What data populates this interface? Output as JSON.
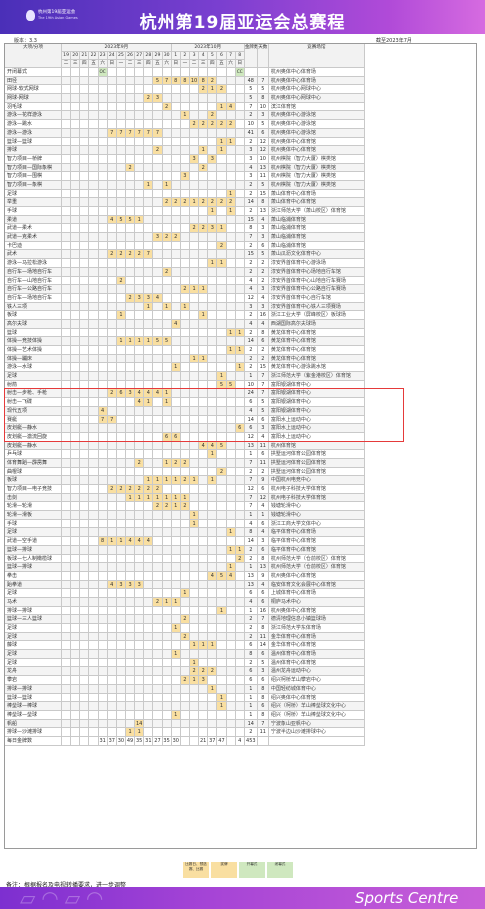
{
  "header": {
    "logo_cn": "杭州第19届亚运会",
    "logo_en": "The 19th Asian Games",
    "title": "杭州第19届亚运会总赛程",
    "version": "版本：3.3",
    "asof": "截至2023年7月"
  },
  "table": {
    "header_left": "大项/分项",
    "months": [
      "2023年9月",
      "2023年10月"
    ],
    "days": [
      "19",
      "20",
      "21",
      "22",
      "23",
      "24",
      "25",
      "26",
      "27",
      "28",
      "29",
      "30",
      "1",
      "2",
      "3",
      "4",
      "5",
      "6",
      "7",
      "8"
    ],
    "weekdays": [
      "二",
      "三",
      "四",
      "五",
      "六",
      "日",
      "一",
      "二",
      "三",
      "四",
      "五",
      "六",
      "日",
      "一",
      "二",
      "三",
      "四",
      "五",
      "六",
      "日"
    ],
    "col_medals": "金牌数",
    "col_days": "天数",
    "col_venue": "竞赛场馆",
    "rows": [
      {
        "name": "开闭幕式",
        "cells": {
          "4": "OC",
          "19": "CC"
        },
        "medals": "",
        "days": "",
        "venue": "杭州奥体中心体育场"
      },
      {
        "name": "田径",
        "cells": {
          "10": "5",
          "11": "7",
          "12": "8",
          "13": "8",
          "14": "10",
          "15": "8",
          "16": "2"
        },
        "medals": "48",
        "days": "7",
        "venue": "杭州奥体中心体育场"
      },
      {
        "name": "网球-软式网球",
        "cells": {
          "15": "2",
          "16": "1",
          "17": "2"
        },
        "medals": "5",
        "days": "5",
        "venue": "杭州奥体中心网球中心"
      },
      {
        "name": "网球-网球",
        "cells": {
          "9": "2",
          "10": "3"
        },
        "medals": "5",
        "days": "8",
        "venue": "杭州奥体中心网球中心"
      },
      {
        "name": "羽毛球",
        "cells": {
          "11": "2",
          "17": "1",
          "18": "4"
        },
        "medals": "7",
        "days": "10",
        "venue": "滨江体育馆"
      },
      {
        "name": "游泳—花样游泳",
        "cells": {
          "13": "1",
          "16": "2"
        },
        "medals": "2",
        "days": "3",
        "venue": "杭州奥体中心游泳馆"
      },
      {
        "name": "游泳—跳水",
        "cells": {
          "14": "2",
          "15": "2",
          "16": "2",
          "17": "2",
          "18": "2"
        },
        "medals": "10",
        "days": "5",
        "venue": "杭州奥体中心游泳馆"
      },
      {
        "name": "游泳—游泳",
        "cells": {
          "5": "7",
          "6": "7",
          "7": "7",
          "8": "7",
          "9": "7",
          "10": "7"
        },
        "medals": "41",
        "days": "6",
        "venue": "杭州奥体中心游泳馆"
      },
      {
        "name": "篮球—篮球",
        "cells": {
          "17": "1",
          "18": "1"
        },
        "medals": "2",
        "days": "12",
        "venue": "杭州奥体中心体育馆"
      },
      {
        "name": "排球",
        "cells": {
          "10": "2",
          "15": "1",
          "17": "1"
        },
        "medals": "3",
        "days": "12",
        "venue": "杭州奥体中心体育馆"
      },
      {
        "name": "智力项目—桥牌",
        "cells": {
          "14": "3",
          "16": "3"
        },
        "medals": "3",
        "days": "10",
        "venue": "杭州棋院（智力大厦）棋类馆"
      },
      {
        "name": "智力项目—国际象棋",
        "cells": {
          "7": "2",
          "15": "2"
        },
        "medals": "4",
        "days": "13",
        "venue": "杭州棋院（智力大厦）棋类馆"
      },
      {
        "name": "智力项目—围棋",
        "cells": {
          "13": "3"
        },
        "medals": "3",
        "days": "11",
        "venue": "杭州棋院（智力大厦）棋类馆"
      },
      {
        "name": "智力项目—象棋",
        "cells": {
          "9": "1",
          "11": "1"
        },
        "medals": "2",
        "days": "5",
        "venue": "杭州棋院（智力大厦）棋类馆"
      },
      {
        "name": "足球",
        "cells": {
          "18": "1"
        },
        "medals": "2",
        "days": "15",
        "venue": "萧山体育中心体育场"
      },
      {
        "name": "举重",
        "cells": {
          "11": "2",
          "12": "2",
          "13": "2",
          "14": "1",
          "15": "2",
          "16": "2",
          "17": "2",
          "18": "2"
        },
        "medals": "14",
        "days": "8",
        "venue": "萧山体育中心体育馆"
      },
      {
        "name": "手球",
        "cells": {
          "16": "1",
          "18": "1"
        },
        "medals": "2",
        "days": "13",
        "venue": "浙江师范大学（萧山校区）体育馆"
      },
      {
        "name": "柔道",
        "cells": {
          "5": "4",
          "6": "5",
          "7": "5",
          "8": "1"
        },
        "medals": "15",
        "days": "4",
        "venue": "萧山临浦体育馆"
      },
      {
        "name": "武道—柔术",
        "cells": {
          "14": "2",
          "15": "2",
          "16": "3",
          "17": "1"
        },
        "medals": "8",
        "days": "3",
        "venue": "萧山临浦体育馆"
      },
      {
        "name": "武道—克柔术",
        "cells": {
          "10": "3",
          "11": "2",
          "12": "2"
        },
        "medals": "7",
        "days": "3",
        "venue": "萧山临浦体育馆"
      },
      {
        "name": "卡巴迪",
        "cells": {
          "17": "2"
        },
        "medals": "2",
        "days": "6",
        "venue": "萧山临浦体育馆"
      },
      {
        "name": "武术",
        "cells": {
          "5": "2",
          "6": "2",
          "7": "2",
          "8": "2",
          "9": "7"
        },
        "medals": "15",
        "days": "5",
        "venue": "萧山瓜沥文化体育中心"
      },
      {
        "name": "游泳—马拉松游泳",
        "cells": {
          "16": "1",
          "17": "1"
        },
        "medals": "2",
        "days": "2",
        "venue": "淳安界首体育中心游泳场"
      },
      {
        "name": "自行车—场地自行车",
        "cells": {
          "11": "2"
        },
        "medals": "2",
        "days": "2",
        "venue": "淳安界首体育中心场地自行车馆"
      },
      {
        "name": "自行车—山地自行车",
        "cells": {
          "6": "2"
        },
        "medals": "4",
        "days": "2",
        "venue": "淳安界首体育中心山地自行车赛场"
      },
      {
        "name": "自行车—公路自行车",
        "cells": {
          "13": "2",
          "14": "1",
          "15": "1"
        },
        "medals": "4",
        "days": "3",
        "venue": "淳安界首体育中心公路自行车赛场"
      },
      {
        "name": "自行车—场地自行车",
        "cells": {
          "7": "2",
          "8": "3",
          "9": "3",
          "10": "4"
        },
        "medals": "12",
        "days": "4",
        "venue": "淳安界首体育中心自行车馆"
      },
      {
        "name": "铁人三项",
        "cells": {
          "9": "1",
          "11": "1",
          "13": "1"
        },
        "medals": "3",
        "days": "3",
        "venue": "淳安界首体育中心铁人三项赛场"
      },
      {
        "name": "板球",
        "cells": {
          "6": "1",
          "15": "1"
        },
        "medals": "2",
        "days": "16",
        "venue": "浙江工业大学（屏峰校区）板球场"
      },
      {
        "name": "高尔夫球",
        "cells": {
          "12": "4"
        },
        "medals": "4",
        "days": "4",
        "venue": "西湖国际高尔夫球场"
      },
      {
        "name": "篮球",
        "cells": {
          "18": "1",
          "19": "1"
        },
        "medals": "2",
        "days": "8",
        "venue": "黄龙体育中心体育馆"
      },
      {
        "name": "体操—竞技体操",
        "cells": {
          "6": "1",
          "7": "1",
          "8": "1",
          "9": "1",
          "10": "5",
          "11": "5"
        },
        "medals": "14",
        "days": "6",
        "venue": "黄龙体育中心体育馆"
      },
      {
        "name": "体操—艺术体操",
        "cells": {
          "18": "1",
          "19": "1"
        },
        "medals": "2",
        "days": "2",
        "venue": "黄龙体育中心体育馆"
      },
      {
        "name": "体操—蹦床",
        "cells": {
          "14": "1",
          "15": "1"
        },
        "medals": "2",
        "days": "2",
        "venue": "黄龙体育中心体育馆"
      },
      {
        "name": "游泳—水球",
        "cells": {
          "12": "1",
          "19": "1"
        },
        "medals": "2",
        "days": "15",
        "venue": "黄龙体育中心游泳跳水馆"
      },
      {
        "name": "足球",
        "cells": {
          "17": "1"
        },
        "medals": "1",
        "days": "7",
        "venue": "浙江师范大学（紫金港校区）体育馆"
      },
      {
        "name": "射箭",
        "cells": {
          "17": "5",
          "18": "5"
        },
        "medals": "10",
        "days": "7",
        "venue": "富阳银湖体育中心"
      },
      {
        "name": "射击—步枪、手枪",
        "cells": {
          "5": "2",
          "6": "6",
          "7": "3",
          "8": "4",
          "9": "4",
          "10": "4",
          "11": "1"
        },
        "medals": "24",
        "days": "7",
        "venue": "富阳银湖体育中心"
      },
      {
        "name": "射击—飞碟",
        "cells": {
          "8": "4",
          "9": "1",
          "11": "1"
        },
        "medals": "6",
        "days": "5",
        "venue": "富阳银湖体育中心"
      },
      {
        "name": "现代五项",
        "cells": {
          "4": "4"
        },
        "medals": "4",
        "days": "5",
        "venue": "富阳银湖体育中心"
      },
      {
        "name": "赛艇",
        "cells": {
          "4": "7",
          "5": "7"
        },
        "medals": "14",
        "days": "6",
        "venue": "富阳水上运动中心"
      },
      {
        "name": "皮划艇—静水",
        "cells": {
          "19": "6"
        },
        "medals": "6",
        "days": "3",
        "venue": "富阳水上运动中心"
      },
      {
        "name": "皮划艇—激流回旋",
        "cells": {
          "11": "6",
          "12": "6"
        },
        "medals": "12",
        "days": "4",
        "venue": "富阳水上运动中心"
      },
      {
        "name": "皮划艇—静水",
        "cells": {
          "15": "4",
          "16": "4",
          "17": "5"
        },
        "medals": "13",
        "days": "11",
        "venue": "杭州体育馆"
      },
      {
        "name": "乒乓球",
        "cells": {
          "16": "1"
        },
        "medals": "1",
        "days": "6",
        "venue": "拱墅运河体育公园体育馆"
      },
      {
        "name": "体育舞蹈—霹雳舞",
        "cells": {
          "8": "2",
          "11": "1",
          "12": "2",
          "13": "2"
        },
        "medals": "7",
        "days": "11",
        "venue": "拱墅运河体育公园体育馆"
      },
      {
        "name": "曲棍球",
        "cells": {
          "17": "2"
        },
        "medals": "2",
        "days": "2",
        "venue": "拱墅运河体育公园体育馆"
      },
      {
        "name": "板球",
        "cells": {
          "9": "1",
          "10": "1",
          "11": "1",
          "12": "1",
          "13": "2",
          "14": "1",
          "16": "1"
        },
        "medals": "7",
        "days": "9",
        "venue": "中国杭州电竞中心"
      },
      {
        "name": "智力项目—电子竞技",
        "cells": {
          "5": "2",
          "6": "2",
          "7": "2",
          "8": "2",
          "9": "2",
          "10": "2"
        },
        "medals": "12",
        "days": "6",
        "venue": "杭州电子科技大学体育馆"
      },
      {
        "name": "击剑",
        "cells": {
          "7": "1",
          "8": "1",
          "9": "1",
          "10": "1",
          "11": "1",
          "12": "1",
          "13": "1"
        },
        "medals": "7",
        "days": "12",
        "venue": "杭州电子科技大学体育馆"
      },
      {
        "name": "轮滑—轮滑",
        "cells": {
          "10": "2",
          "11": "2",
          "12": "1",
          "13": "2"
        },
        "medals": "7",
        "days": "4",
        "venue": "钱塘轮滑中心"
      },
      {
        "name": "轮滑—滑板",
        "cells": {
          "14": "1"
        },
        "medals": "1",
        "days": "1",
        "venue": "钱塘轮滑中心"
      },
      {
        "name": "手球",
        "cells": {
          "14": "1"
        },
        "medals": "4",
        "days": "6",
        "venue": "浙江工商大学文体中心"
      },
      {
        "name": "足球",
        "cells": {
          "18": "1"
        },
        "medals": "8",
        "days": "4",
        "venue": "临平体育中心体育场"
      },
      {
        "name": "武道—空手道",
        "cells": {
          "4": "8",
          "5": "1",
          "6": "1",
          "7": "4",
          "8": "4",
          "9": "4"
        },
        "medals": "14",
        "days": "3",
        "venue": "临平体育中心体育馆"
      },
      {
        "name": "篮球—排球",
        "cells": {
          "18": "1",
          "19": "1"
        },
        "medals": "2",
        "days": "6",
        "venue": "临平体育中心体育馆"
      },
      {
        "name": "板球—七人制橄榄球",
        "cells": {
          "19": "2"
        },
        "medals": "2",
        "days": "8",
        "venue": "杭州师范大学（仓前校区）体育馆"
      },
      {
        "name": "篮球—排球",
        "cells": {
          "18": "1"
        },
        "medals": "1",
        "days": "13",
        "venue": "杭州师范大学（仓前校区）体育馆"
      },
      {
        "name": "拳击",
        "cells": {
          "16": "4",
          "17": "5",
          "18": "4"
        },
        "medals": "13",
        "days": "9",
        "venue": "杭州奥体中心体育馆"
      },
      {
        "name": "跆拳道",
        "cells": {
          "5": "4",
          "6": "3",
          "7": "3",
          "8": "3"
        },
        "medals": "13",
        "days": "4",
        "venue": "临安体育文化会展中心体育馆"
      },
      {
        "name": "足球",
        "cells": {
          "13": "1"
        },
        "medals": "6",
        "days": "6",
        "venue": "上城体育中心体育场"
      },
      {
        "name": "马术",
        "cells": {
          "10": "2",
          "11": "1",
          "12": "1"
        },
        "medals": "4",
        "days": "6",
        "venue": "桐庐马术中心"
      },
      {
        "name": "排球—排球",
        "cells": {
          "17": "1"
        },
        "medals": "1",
        "days": "16",
        "venue": "杭州奥体中心体育馆"
      },
      {
        "name": "篮球—三人篮球",
        "cells": {
          "13": "2"
        },
        "medals": "2",
        "days": "7",
        "venue": "德清地理信息小镇篮球场"
      },
      {
        "name": "足球",
        "cells": {
          "12": "1"
        },
        "medals": "2",
        "days": "8",
        "venue": "浙江师范大学东体育场"
      },
      {
        "name": "足球",
        "cells": {
          "13": "2"
        },
        "medals": "2",
        "days": "11",
        "venue": "金华体育中心体育场"
      },
      {
        "name": "藤球",
        "cells": {
          "14": "1",
          "15": "1",
          "16": "1"
        },
        "medals": "6",
        "days": "14",
        "venue": "金华体育中心体育馆"
      },
      {
        "name": "足球",
        "cells": {
          "12": "1"
        },
        "medals": "8",
        "days": "6",
        "venue": "温州体育中心体育场"
      },
      {
        "name": "足球",
        "cells": {
          "14": "1"
        },
        "medals": "2",
        "days": "5",
        "venue": "温州体育中心体育馆"
      },
      {
        "name": "龙舟",
        "cells": {
          "14": "2",
          "15": "2",
          "16": "2"
        },
        "medals": "6",
        "days": "3",
        "venue": "温州龙舟运动中心"
      },
      {
        "name": "攀岩",
        "cells": {
          "13": "2",
          "14": "1",
          "15": "3"
        },
        "medals": "6",
        "days": "6",
        "venue": "绍兴柯桥羊山攀岩中心"
      },
      {
        "name": "排球—排球",
        "cells": {
          "16": "1"
        },
        "medals": "1",
        "days": "8",
        "venue": "中国轻纺城体育中心"
      },
      {
        "name": "篮球—篮球",
        "cells": {
          "17": "1"
        },
        "medals": "1",
        "days": "8",
        "venue": "绍兴奥体中心体育馆"
      },
      {
        "name": "棒垒球—棒球",
        "cells": {
          "17": "1"
        },
        "medals": "1",
        "days": "6",
        "venue": "绍兴（柯桥）羊山棒垒球文化中心"
      },
      {
        "name": "棒垒球—垒球",
        "cells": {
          "12": "1"
        },
        "medals": "1",
        "days": "8",
        "venue": "绍兴（柯桥）羊山棒垒球文化中心"
      },
      {
        "name": "帆船",
        "cells": {
          "8": "14"
        },
        "medals": "14",
        "days": "7",
        "venue": "宁波象山亚帆中心"
      },
      {
        "name": "排球—沙滩排球",
        "cells": {
          "7": "1",
          "8": "1"
        },
        "medals": "2",
        "days": "11",
        "venue": "宁波半边山沙滩排球中心"
      }
    ],
    "totals": {
      "label": "每日金牌数",
      "cells": {
        "4": "31",
        "5": "37",
        "6": "30",
        "7": "49",
        "8": "35",
        "9": "31",
        "10": "27",
        "11": "35",
        "12": "30",
        "15": "21",
        "16": "37",
        "17": "47",
        "19": "4"
      },
      "medals": "453"
    }
  },
  "legend": {
    "items": [
      "比赛日、预选赛、比赛",
      "奖牌",
      "开幕式",
      "闭幕式"
    ],
    "oc": "OC",
    "cc": "CC"
  },
  "note": "备注：根据报名及电视转播要求，进一步调整",
  "footer": {
    "brand": "Sports Centre"
  },
  "colors": {
    "banner": "#6a36c8",
    "medal_cell": "#f9dfa1",
    "ceremony_cell": "#cfe8bf",
    "highlight_box": "#e53a3a"
  }
}
